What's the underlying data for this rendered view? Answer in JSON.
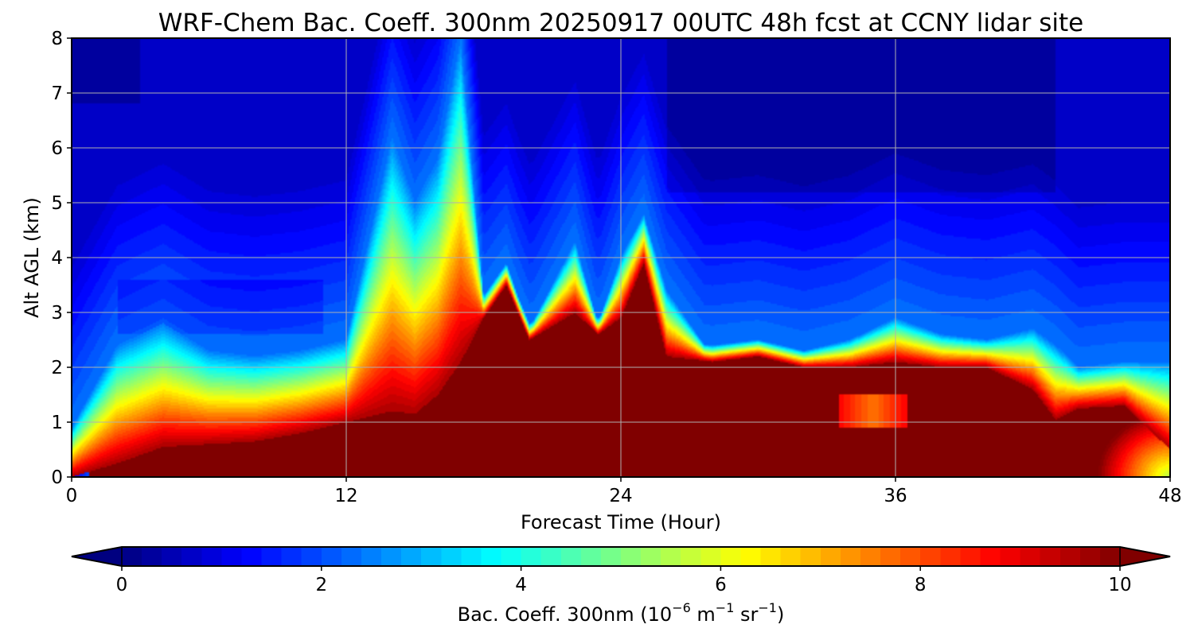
{
  "chart_data": {
    "type": "heatmap",
    "title": "WRF-Chem Bac. Coeff. 300nm  20250917 00UTC 48h fcst at CCNY lidar site",
    "xlabel": "Forecast Time (Hour)",
    "ylabel": "Alt AGL (km)",
    "xlim": [
      0,
      48
    ],
    "ylim": [
      0,
      8
    ],
    "x_ticks": [
      0,
      12,
      24,
      36,
      48
    ],
    "y_ticks": [
      0,
      1,
      2,
      3,
      4,
      5,
      6,
      7,
      8
    ],
    "grid": true,
    "colormap": "jet",
    "colorbar": {
      "label_main": "Bac. Coeff. 300nm  (10",
      "label_exp1": "−6",
      "label_unit1": " m",
      "label_exp2": "−1",
      "label_unit2": " sr",
      "label_exp3": "−1",
      "label_close": ")",
      "range": [
        0,
        10
      ],
      "ticks": [
        0,
        2,
        4,
        6,
        8,
        10
      ],
      "extend": "both",
      "levels": 50
    },
    "field": {
      "hours": [
        0,
        2,
        4,
        6,
        8,
        10,
        12,
        14,
        15,
        16,
        17,
        18,
        19,
        20,
        22,
        23,
        24,
        25,
        26,
        28,
        30,
        32,
        34,
        36,
        38,
        40,
        42,
        43,
        44,
        46,
        48
      ],
      "saturation_top_km": [
        0,
        0.25,
        0.55,
        0.6,
        0.65,
        0.8,
        1.0,
        1.2,
        1.15,
        1.5,
        2.1,
        2.9,
        3.5,
        2.5,
        3.0,
        2.6,
        2.9,
        3.9,
        2.2,
        2.1,
        2.2,
        2.0,
        2.0,
        2.1,
        2.0,
        2.0,
        1.6,
        1.05,
        1.25,
        1.3,
        0.5
      ],
      "plume_top_km": [
        0.9,
        2.4,
        2.8,
        2.3,
        2.2,
        2.3,
        2.5,
        6.2,
        5.0,
        5.8,
        8.0,
        3.3,
        3.9,
        2.7,
        4.3,
        2.8,
        4.0,
        4.8,
        3.4,
        2.2,
        2.4,
        2.3,
        2.5,
        2.9,
        2.6,
        2.5,
        2.7,
        2.4,
        2.0,
        2.1,
        2.1
      ]
    }
  }
}
